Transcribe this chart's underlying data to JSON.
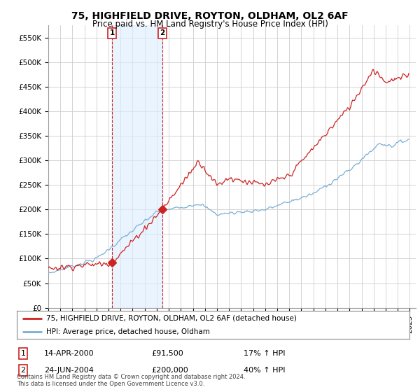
{
  "title": "75, HIGHFIELD DRIVE, ROYTON, OLDHAM, OL2 6AF",
  "subtitle": "Price paid vs. HM Land Registry's House Price Index (HPI)",
  "title_fontsize": 10,
  "subtitle_fontsize": 8.5,
  "ylabel_ticks": [
    "£0",
    "£50K",
    "£100K",
    "£150K",
    "£200K",
    "£250K",
    "£300K",
    "£350K",
    "£400K",
    "£450K",
    "£500K",
    "£550K"
  ],
  "ytick_values": [
    0,
    50000,
    100000,
    150000,
    200000,
    250000,
    300000,
    350000,
    400000,
    450000,
    500000,
    550000
  ],
  "ylim": [
    0,
    575000
  ],
  "xlim_start": 1995.0,
  "xlim_end": 2025.5,
  "sale1_date": 2000.288,
  "sale1_price": 91500,
  "sale1_label": "1",
  "sale2_date": 2004.482,
  "sale2_price": 200000,
  "sale2_label": "2",
  "hpi_color": "#7bafd4",
  "sale_color": "#cc2222",
  "legend_line1": "75, HIGHFIELD DRIVE, ROYTON, OLDHAM, OL2 6AF (detached house)",
  "legend_line2": "HPI: Average price, detached house, Oldham",
  "table_row1": [
    "1",
    "14-APR-2000",
    "£91,500",
    "17% ↑ HPI"
  ],
  "table_row2": [
    "2",
    "24-JUN-2004",
    "£200,000",
    "40% ↑ HPI"
  ],
  "footer": "Contains HM Land Registry data © Crown copyright and database right 2024.\nThis data is licensed under the Open Government Licence v3.0.",
  "background_color": "#ffffff",
  "grid_color": "#cccccc",
  "shaded_region_color": "#ddeeff"
}
